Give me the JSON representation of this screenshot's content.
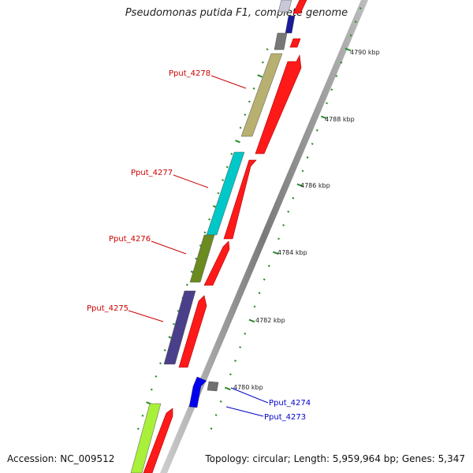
{
  "title": "Pseudomonas putida F1, complete genome",
  "accession": "Accession: NC_009512",
  "topology": "Topology: circular; Length: 5,959,964 bp; Genes: 5,347",
  "scale_labels": [
    "4780 kbp",
    "4782 kbp",
    "4784 kbp",
    "4786 kbp",
    "4788 kbp",
    "4790 kbp"
  ],
  "colors": {
    "forward_gene": "#ff0000",
    "cds_red_label": "#cc0000",
    "cds_blue_label": "#0000cc",
    "tick": "#2a8a2a",
    "backbone": "#8c8c8c"
  },
  "genes": [
    {
      "label": "Pput_4278",
      "color": "#b8b070"
    },
    {
      "label": "Pput_4277",
      "color": "#00c8c8"
    },
    {
      "label": "Pput_4276",
      "color": "#6b8a1f"
    },
    {
      "label": "Pput_4275",
      "color": "#4a3f8a"
    },
    {
      "label": "Pput_4274",
      "color": "#0000ee"
    },
    {
      "label": "Pput_4273",
      "color": "#707070"
    }
  ]
}
